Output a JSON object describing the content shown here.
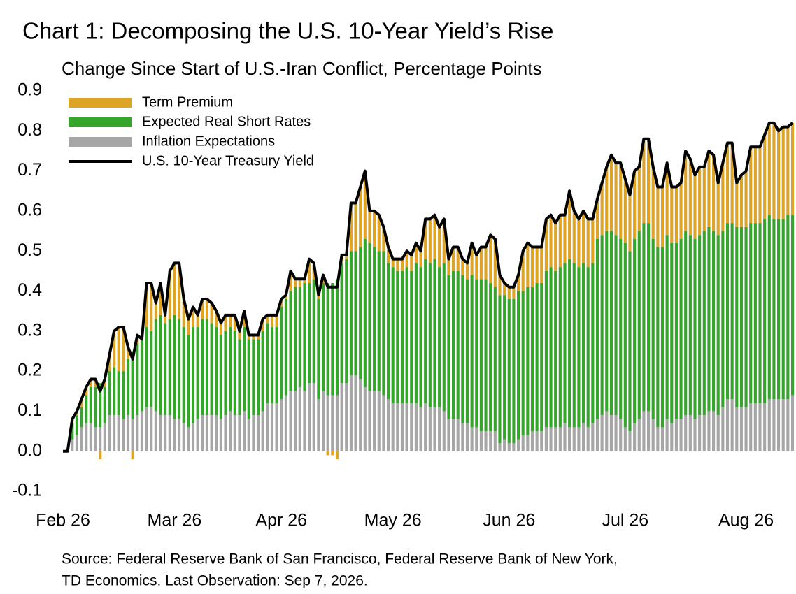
{
  "chart_data": {
    "type": "bar",
    "stacked": true,
    "title": "Chart 1: Decomposing the U.S. 10-Year Yield’s Rise",
    "subtitle": "Change Since Start of U.S.-Iran Conflict, Percentage Points",
    "source": [
      "Source: Federal Reserve Bank of San Francisco, Federal Reserve Bank of New York,",
      "TD Economics. Last Observation: Sep 7, 2026."
    ],
    "categories": [
      "Feb 26",
      null,
      null,
      null,
      null,
      null,
      null,
      null,
      null,
      null,
      null,
      null,
      null,
      null,
      null,
      null,
      null,
      null,
      null,
      null,
      null,
      null,
      null,
      null,
      "Mar 26",
      null,
      null,
      null,
      null,
      null,
      null,
      null,
      null,
      null,
      null,
      null,
      null,
      null,
      null,
      null,
      null,
      null,
      null,
      null,
      null,
      null,
      null,
      "Apr 26",
      null,
      null,
      null,
      null,
      null,
      null,
      null,
      null,
      null,
      null,
      null,
      null,
      null,
      null,
      null,
      null,
      null,
      null,
      null,
      null,
      null,
      null,
      null,
      "May 26",
      null,
      null,
      null,
      null,
      null,
      null,
      null,
      null,
      null,
      null,
      null,
      null,
      null,
      null,
      null,
      null,
      null,
      null,
      null,
      null,
      null,
      null,
      null,
      null,
      "Jun 26",
      null,
      null,
      null,
      null,
      null,
      null,
      null,
      null,
      null,
      null,
      null,
      null,
      null,
      null,
      null,
      null,
      null,
      null,
      null,
      null,
      null,
      null,
      null,
      null,
      "Jul 26",
      null,
      null,
      null,
      null,
      null,
      null,
      null,
      null,
      null,
      null,
      null,
      null,
      null,
      null,
      null,
      null,
      null,
      null,
      null,
      null,
      null,
      null,
      null,
      null,
      null,
      "Aug 26",
      null,
      null,
      null,
      null,
      null,
      null,
      null,
      null,
      null,
      null
    ],
    "series": [
      {
        "name": "Term Premium",
        "color": "#dea426",
        "stack": 2,
        "values": [
          0,
          0,
          0.01,
          0.01,
          0.02,
          0.02,
          0.02,
          0.02,
          -0.02,
          0.02,
          0.04,
          0.09,
          0.11,
          0.11,
          0.03,
          -0.02,
          0.02,
          0,
          0.11,
          0.12,
          0.04,
          0.08,
          0.02,
          0.12,
          0.13,
          0.14,
          0.07,
          0.04,
          0.05,
          0.03,
          0.05,
          0.05,
          0.05,
          0.04,
          0.03,
          0.04,
          0.03,
          0.04,
          0.02,
          0.04,
          0.01,
          0.01,
          0.01,
          0.03,
          0.02,
          0.03,
          0.03,
          0.02,
          0.01,
          0.05,
          0.02,
          0.02,
          0.01,
          0.06,
          0.04,
          0.01,
          0.02,
          -0.01,
          -0.01,
          -0.02,
          0.02,
          0.01,
          0.12,
          0.12,
          0.15,
          0.17,
          0.08,
          0.09,
          0.09,
          0.06,
          0.04,
          0.02,
          0.03,
          0.03,
          0.04,
          0.04,
          0.05,
          0.04,
          0.1,
          0.11,
          0.11,
          0.1,
          0.11,
          0.04,
          0.06,
          0.06,
          0.04,
          0.04,
          0.08,
          0.06,
          0.08,
          0.08,
          0.12,
          0.12,
          0.05,
          0.03,
          0.03,
          0.03,
          0.04,
          0.1,
          0.11,
          0.1,
          0.09,
          0.09,
          0.13,
          0.13,
          0.12,
          0.13,
          0.12,
          0.17,
          0.13,
          0.12,
          0.13,
          0.12,
          0.11,
          0.1,
          0.13,
          0.16,
          0.19,
          0.18,
          0.19,
          0.16,
          0.14,
          0.17,
          0.16,
          0.21,
          0.21,
          0.18,
          0.15,
          0.15,
          0.18,
          0.14,
          0.14,
          0.14,
          0.2,
          0.19,
          0.16,
          0.17,
          0.16,
          0.19,
          0.19,
          0.13,
          0.17,
          0.2,
          0.2,
          0.11,
          0.13,
          0.14,
          0.19,
          0.19,
          0.19,
          0.21,
          0.23,
          0.24,
          0.22,
          0.23,
          0.22,
          0.23
        ]
      },
      {
        "name": "Expected Real Short Rates",
        "color": "#35a52c",
        "stack": 1,
        "values": [
          0,
          0,
          0.04,
          0.05,
          0.05,
          0.07,
          0.09,
          0.1,
          0.11,
          0.09,
          0.11,
          0.12,
          0.11,
          0.12,
          0.14,
          0.17,
          0.18,
          0.18,
          0.2,
          0.19,
          0.23,
          0.25,
          0.23,
          0.24,
          0.26,
          0.25,
          0.24,
          0.23,
          0.24,
          0.23,
          0.24,
          0.24,
          0.23,
          0.22,
          0.21,
          0.21,
          0.21,
          0.21,
          0.19,
          0.21,
          0.2,
          0.19,
          0.19,
          0.2,
          0.2,
          0.19,
          0.19,
          0.23,
          0.24,
          0.25,
          0.26,
          0.25,
          0.27,
          0.25,
          0.26,
          0.25,
          0.27,
          0.28,
          0.28,
          0.29,
          0.3,
          0.31,
          0.31,
          0.31,
          0.33,
          0.37,
          0.37,
          0.36,
          0.35,
          0.36,
          0.34,
          0.34,
          0.33,
          0.33,
          0.34,
          0.33,
          0.35,
          0.35,
          0.36,
          0.36,
          0.37,
          0.35,
          0.37,
          0.36,
          0.37,
          0.37,
          0.37,
          0.36,
          0.38,
          0.37,
          0.38,
          0.38,
          0.37,
          0.36,
          0.37,
          0.36,
          0.36,
          0.36,
          0.37,
          0.36,
          0.37,
          0.36,
          0.37,
          0.37,
          0.39,
          0.4,
          0.39,
          0.4,
          0.4,
          0.42,
          0.41,
          0.4,
          0.4,
          0.4,
          0.4,
          0.45,
          0.45,
          0.45,
          0.46,
          0.45,
          0.45,
          0.46,
          0.45,
          0.46,
          0.47,
          0.47,
          0.47,
          0.45,
          0.45,
          0.45,
          0.46,
          0.45,
          0.44,
          0.45,
          0.46,
          0.45,
          0.45,
          0.45,
          0.46,
          0.46,
          0.45,
          0.45,
          0.44,
          0.44,
          0.44,
          0.45,
          0.45,
          0.45,
          0.45,
          0.45,
          0.45,
          0.46,
          0.46,
          0.45,
          0.45,
          0.45,
          0.46,
          0.45
        ]
      },
      {
        "name": "Inflation Expectations",
        "color": "#a6a6a6",
        "stack": 0,
        "values": [
          0,
          0,
          0.03,
          0.04,
          0.06,
          0.07,
          0.07,
          0.06,
          0.06,
          0.07,
          0.09,
          0.09,
          0.09,
          0.08,
          0.09,
          0.08,
          0.09,
          0.1,
          0.11,
          0.11,
          0.1,
          0.09,
          0.09,
          0.09,
          0.08,
          0.08,
          0.07,
          0.06,
          0.07,
          0.08,
          0.09,
          0.09,
          0.09,
          0.09,
          0.08,
          0.09,
          0.1,
          0.09,
          0.09,
          0.1,
          0.08,
          0.09,
          0.09,
          0.1,
          0.12,
          0.12,
          0.12,
          0.13,
          0.14,
          0.15,
          0.15,
          0.16,
          0.15,
          0.17,
          0.17,
          0.13,
          0.15,
          0.14,
          0.14,
          0.14,
          0.17,
          0.17,
          0.19,
          0.19,
          0.18,
          0.16,
          0.15,
          0.15,
          0.15,
          0.14,
          0.13,
          0.12,
          0.12,
          0.12,
          0.12,
          0.12,
          0.12,
          0.11,
          0.12,
          0.11,
          0.11,
          0.11,
          0.1,
          0.08,
          0.08,
          0.08,
          0.07,
          0.07,
          0.06,
          0.06,
          0.05,
          0.05,
          0.05,
          0.05,
          0.02,
          0.03,
          0.02,
          0.02,
          0.03,
          0.04,
          0.04,
          0.05,
          0.05,
          0.05,
          0.06,
          0.06,
          0.06,
          0.06,
          0.07,
          0.06,
          0.06,
          0.06,
          0.07,
          0.06,
          0.07,
          0.08,
          0.09,
          0.1,
          0.09,
          0.09,
          0.08,
          0.06,
          0.05,
          0.07,
          0.08,
          0.1,
          0.1,
          0.08,
          0.06,
          0.06,
          0.08,
          0.07,
          0.08,
          0.08,
          0.09,
          0.09,
          0.08,
          0.09,
          0.09,
          0.1,
          0.1,
          0.09,
          0.11,
          0.13,
          0.13,
          0.11,
          0.11,
          0.11,
          0.12,
          0.12,
          0.12,
          0.12,
          0.13,
          0.13,
          0.13,
          0.13,
          0.13,
          0.14
        ]
      },
      {
        "name": "U.S. 10-Year Treasury Yield",
        "color": "#000000",
        "type": "line",
        "values": [
          0,
          0,
          0.08,
          0.1,
          0.13,
          0.16,
          0.18,
          0.18,
          0.15,
          0.18,
          0.24,
          0.3,
          0.31,
          0.31,
          0.26,
          0.23,
          0.29,
          0.28,
          0.42,
          0.42,
          0.37,
          0.42,
          0.34,
          0.45,
          0.47,
          0.47,
          0.38,
          0.33,
          0.36,
          0.34,
          0.38,
          0.38,
          0.37,
          0.35,
          0.32,
          0.34,
          0.34,
          0.34,
          0.3,
          0.35,
          0.29,
          0.29,
          0.29,
          0.33,
          0.34,
          0.34,
          0.34,
          0.38,
          0.39,
          0.45,
          0.43,
          0.43,
          0.43,
          0.48,
          0.47,
          0.39,
          0.44,
          0.41,
          0.41,
          0.41,
          0.49,
          0.49,
          0.62,
          0.62,
          0.66,
          0.7,
          0.6,
          0.6,
          0.59,
          0.56,
          0.51,
          0.48,
          0.48,
          0.48,
          0.5,
          0.49,
          0.52,
          0.5,
          0.58,
          0.58,
          0.59,
          0.56,
          0.58,
          0.48,
          0.51,
          0.51,
          0.48,
          0.47,
          0.52,
          0.49,
          0.51,
          0.51,
          0.54,
          0.53,
          0.44,
          0.42,
          0.41,
          0.41,
          0.44,
          0.5,
          0.52,
          0.51,
          0.51,
          0.51,
          0.58,
          0.59,
          0.57,
          0.59,
          0.59,
          0.65,
          0.6,
          0.58,
          0.6,
          0.58,
          0.58,
          0.63,
          0.67,
          0.71,
          0.74,
          0.72,
          0.72,
          0.68,
          0.64,
          0.7,
          0.71,
          0.78,
          0.78,
          0.71,
          0.66,
          0.66,
          0.72,
          0.66,
          0.66,
          0.67,
          0.75,
          0.73,
          0.69,
          0.71,
          0.71,
          0.75,
          0.74,
          0.67,
          0.72,
          0.77,
          0.77,
          0.67,
          0.69,
          0.7,
          0.76,
          0.76,
          0.76,
          0.79,
          0.82,
          0.82,
          0.8,
          0.81,
          0.81,
          0.82
        ]
      }
    ],
    "ylim": [
      -0.1,
      0.9
    ],
    "yticks": [
      -0.1,
      {
        "value": 0,
        "label": "0.0"
      },
      0.1,
      0.2,
      0.3,
      0.4,
      0.5,
      0.6,
      0.7,
      0.8,
      0.9
    ],
    "grid": false,
    "legend": "top-left"
  }
}
